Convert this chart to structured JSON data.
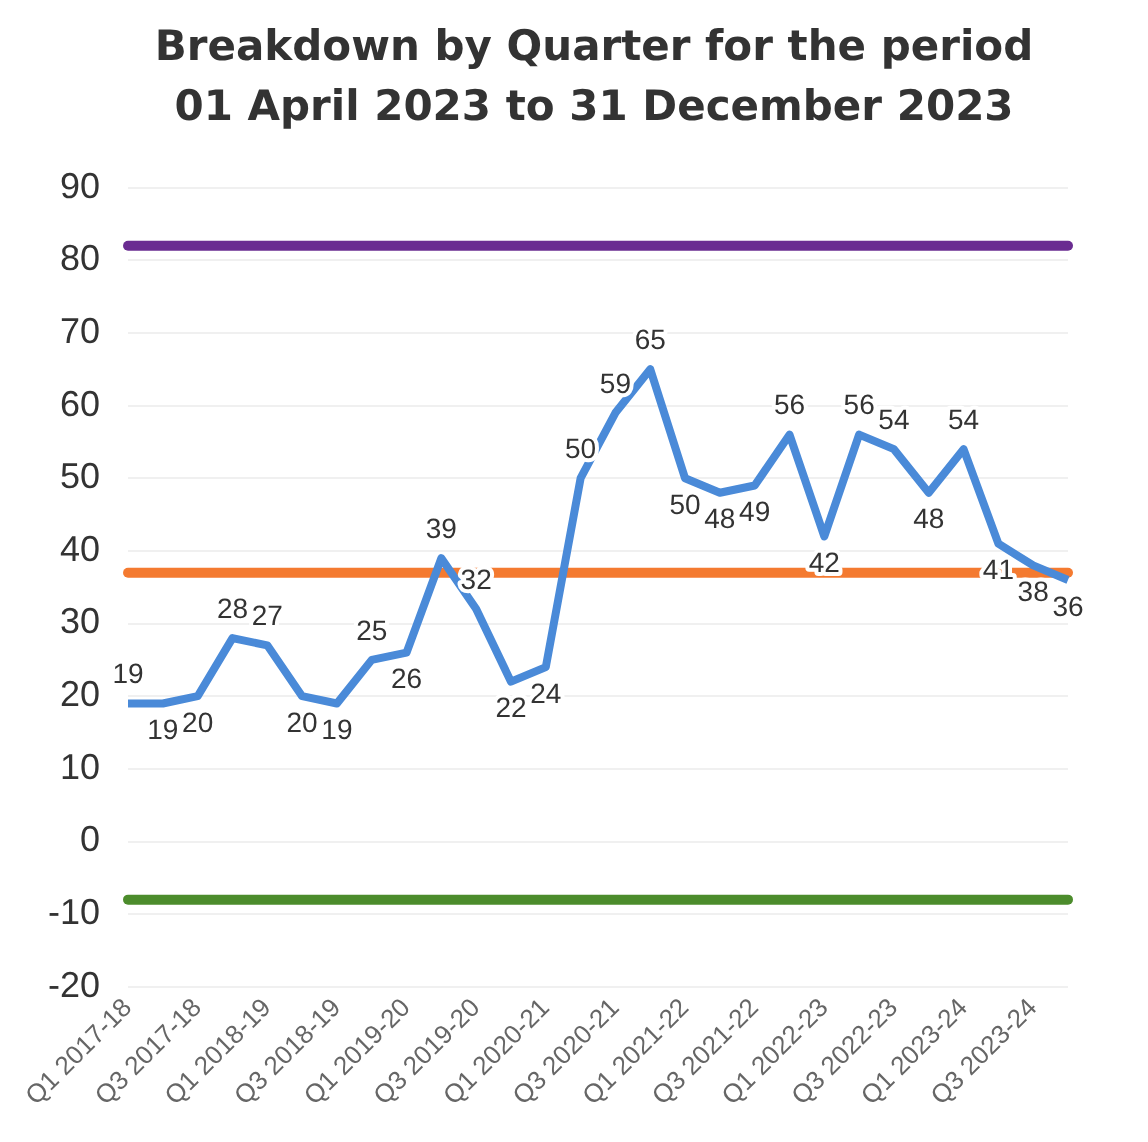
{
  "chart_data": {
    "type": "line",
    "title": "Breakdown by Quarter for the period 01 April 2023 to 31 December 2023",
    "categories": [
      "Q1 2017-18",
      null,
      "Q3 2017-18",
      null,
      "Q1 2018-19",
      null,
      "Q3 2018-19",
      null,
      "Q1 2019-20",
      null,
      "Q3 2019-20",
      null,
      "Q1 2020-21",
      null,
      "Q3 2020-21",
      null,
      "Q1 2021-22",
      null,
      "Q3 2021-22",
      null,
      "Q1 2022-23",
      null,
      "Q3 2022-23",
      null,
      "Q1 2023-24",
      null,
      "Q3 2023-24",
      null
    ],
    "series": [
      {
        "color": "#4a8ad8",
        "values": [
          19,
          19,
          20,
          28,
          27,
          20,
          19,
          25,
          26,
          39,
          32,
          22,
          24,
          50,
          59,
          65,
          50,
          48,
          49,
          56,
          42,
          56,
          54,
          48,
          54,
          41,
          38,
          36
        ]
      }
    ],
    "ylim": [
      -20,
      90
    ],
    "yticks": [
      -20,
      -10,
      0,
      10,
      20,
      30,
      40,
      50,
      60,
      70,
      80,
      90
    ],
    "ref_lines": [
      {
        "axis": "y",
        "value": 82,
        "color": "#6a2c91"
      },
      {
        "axis": "y",
        "value": 37,
        "color": "#f47a30"
      },
      {
        "axis": "y",
        "value": -8,
        "color": "#4c8c2c"
      }
    ],
    "grid": "y",
    "legend": false,
    "marker": "none",
    "line_style": "solid",
    "data_labels": true
  }
}
